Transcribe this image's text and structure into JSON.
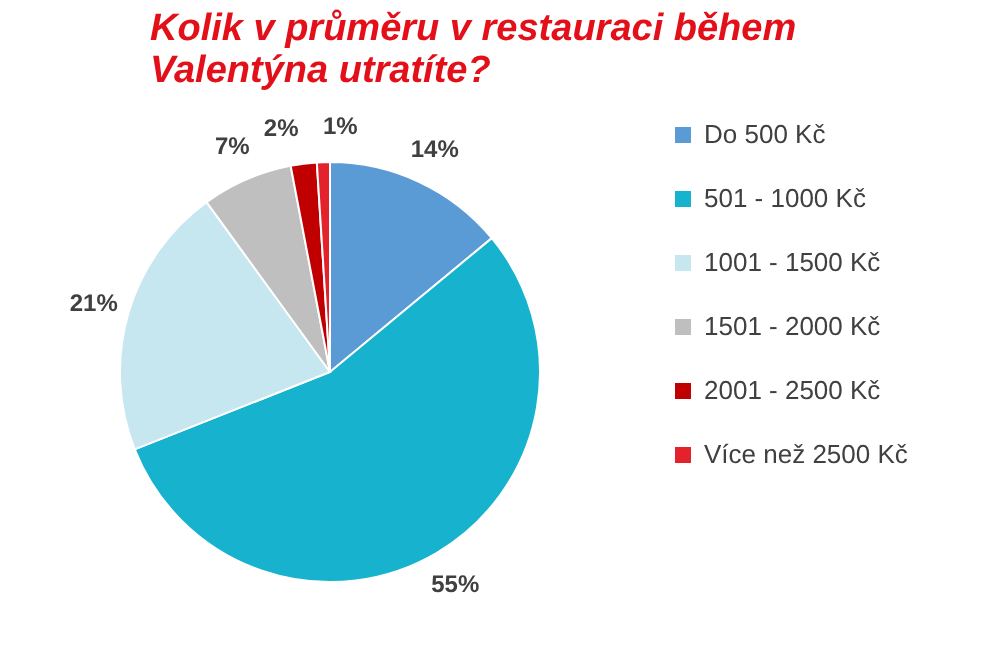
{
  "chart_data": {
    "type": "pie",
    "title": "Kolik v průměru v restauraci během Valentýna utratíte?",
    "categories": [
      "Do 500 Kč",
      "501 - 1000 Kč",
      "1001 - 1500 Kč",
      "1501 - 2000 Kč",
      "2001 - 2500 Kč",
      "Více než 2500 Kč"
    ],
    "values": [
      14,
      55,
      21,
      7,
      2,
      1
    ],
    "colors": [
      "#5b9bd5",
      "#17b2ce",
      "#c6e6f0",
      "#bfbfbf",
      "#c00000",
      "#e3222c"
    ],
    "value_labels": [
      "14%",
      "55%",
      "21%",
      "7%",
      "2%",
      "1%"
    ],
    "legend": "right"
  }
}
